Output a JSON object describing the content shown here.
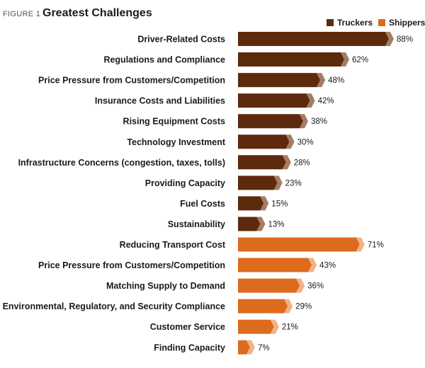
{
  "figure_label": "FIGURE 1",
  "title": "Greatest Challenges",
  "colors": {
    "truckers": "#5e2a0d",
    "truckers_tip": "#a57d66",
    "shippers": "#dd6b1e",
    "shippers_tip": "#f0b386"
  },
  "chart_data": {
    "type": "bar",
    "orientation": "horizontal",
    "title": "Greatest Challenges",
    "legend": {
      "placement": "top-right",
      "entries": [
        "Truckers",
        "Shippers"
      ]
    },
    "value_suffix": "%",
    "xlim": [
      0,
      100
    ],
    "grid": false,
    "series": [
      {
        "name": "Truckers",
        "categories": [
          "Driver-Related Costs",
          "Regulations and Compliance",
          "Price Pressure from Customers/Competition",
          "Insurance Costs and Liabilities",
          "Rising Equipment Costs",
          "Technology Investment",
          "Infrastructure Concerns (congestion, taxes, tolls)",
          "Providing Capacity",
          "Fuel Costs",
          "Sustainability"
        ],
        "values": [
          88,
          62,
          48,
          42,
          38,
          30,
          28,
          23,
          15,
          13
        ]
      },
      {
        "name": "Shippers",
        "categories": [
          "Reducing Transport Cost",
          "Price Pressure from Customers/Competition",
          "Matching Supply to Demand",
          "Environmental, Regulatory, and Security Compliance",
          "Customer Service",
          "Finding Capacity"
        ],
        "values": [
          71,
          43,
          36,
          29,
          21,
          7
        ]
      }
    ]
  }
}
